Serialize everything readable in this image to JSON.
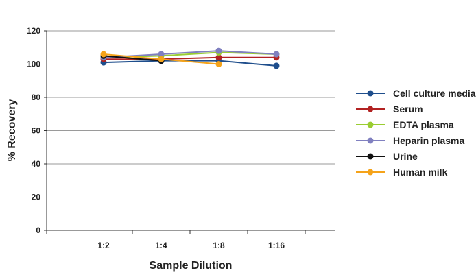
{
  "chart_data": {
    "type": "line",
    "categories": [
      "1:2",
      "1:4",
      "1:8",
      "1:16"
    ],
    "xlabel": "Sample Dilution",
    "ylabel": "% Recovery",
    "ylim": [
      0,
      120
    ],
    "yticks": [
      0,
      20,
      40,
      60,
      80,
      100,
      120
    ],
    "grid": true,
    "legend": "right",
    "series": [
      {
        "name": "Cell culture media",
        "color": "#1f4e8c",
        "values": [
          101,
          102,
          102,
          99
        ]
      },
      {
        "name": "Serum",
        "color": "#b22222",
        "values": [
          103,
          103,
          104,
          104
        ]
      },
      {
        "name": "EDTA plasma",
        "color": "#9acd32",
        "values": [
          104,
          105,
          107,
          106
        ]
      },
      {
        "name": "Heparin plasma",
        "color": "#8080c0",
        "values": [
          104,
          106,
          108,
          106
        ]
      },
      {
        "name": "Urine",
        "color": "#111111",
        "values": [
          105,
          102,
          null,
          null
        ]
      },
      {
        "name": "Human milk",
        "color": "#f5a31a",
        "values": [
          106,
          103,
          100,
          null
        ]
      }
    ]
  }
}
